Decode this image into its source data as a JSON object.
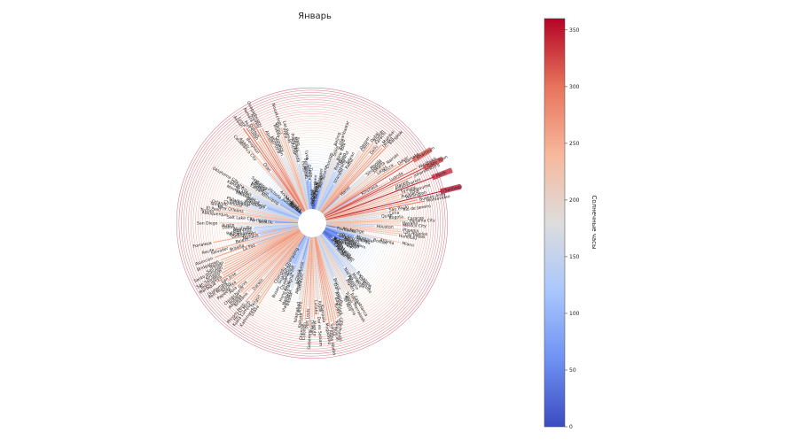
{
  "chart_data": {
    "type": "radial-bar",
    "title": "Январь",
    "colorbar": {
      "label": "Солнечные часы",
      "min": 0,
      "max": 360,
      "ticks": [
        0,
        50,
        100,
        150,
        200,
        250,
        300,
        350
      ],
      "colormap": "coolwarm",
      "colors": [
        "#3b4cc0",
        "#6f92f3",
        "#aac7fd",
        "#dddddd",
        "#f7b89c",
        "#e7745b",
        "#b40426"
      ]
    },
    "categories": [
      "Yakutsk",
      "Oslo",
      "Dikson",
      "Aberdeen",
      "Reykjavik",
      "Moscow",
      "Berlin",
      "Vancouver",
      "London",
      "Paris",
      "Toronto",
      "Chicago",
      "Beijing",
      "Seoul",
      "Ulaanbaatar",
      "Tokyo",
      "New York",
      "Rome",
      "Lisbon",
      "Madrid",
      "Athens",
      "Istanbul",
      "Tehran",
      "Kabul",
      "Denver",
      "Cairo",
      "Dubai",
      "Riyadh",
      "Karachi",
      "Delhi",
      "Mumbai",
      "Dhaka",
      "Bangkok",
      "Hanoi",
      "Manila",
      "Singapore",
      "Jakarta",
      "Nairobi",
      "Lagos",
      "Accra",
      "Dakar",
      "Bamako",
      "Khartoum",
      "Kinshasa",
      "Luanda",
      "Windhoek",
      "Cape Town",
      "Johannesburg",
      "Harare",
      "Antananarivo",
      "Perth",
      "Sydney",
      "Melbourne",
      "Auckland",
      "Wellington",
      "Santiago",
      "Buenos Aires",
      "Montevideo",
      "Sao Paulo",
      "Rio de Janeiro",
      "Lima",
      "Quito",
      "Bogota",
      "Caracas",
      "Panama City",
      "Havana",
      "Mexico City",
      "Houston",
      "Phoenix",
      "Los Angeles",
      "Las Vegas",
      "Honolulu",
      "Anchorage",
      "Fairbanks",
      "Miami",
      "Atlanta",
      "Boston",
      "Montreal",
      "Quebec",
      "Halifax",
      "Dublin",
      "Edinburgh",
      "Glasgow",
      "Amsterdam",
      "Brussels",
      "Zurich",
      "Vienna",
      "Prague",
      "Warsaw",
      "Kyiv",
      "Minsk",
      "Riga",
      "Tallinn",
      "Helsinki",
      "Stockholm",
      "Copenhagen",
      "Hamburg",
      "Munich",
      "Milan",
      "Barcelona",
      "Valencia",
      "Seville",
      "Marseille",
      "Nice",
      "Naples",
      "Palermo",
      "Tunis",
      "Algiers",
      "Casablanca",
      "Rabat",
      "Marrakesh",
      "Tripoli",
      "Alexandria",
      "Tel Aviv",
      "Beirut",
      "Damascus",
      "Amman",
      "Baghdad",
      "Kuwait City",
      "Doha",
      "Abu Dhabi",
      "Muscat",
      "Sanaa",
      "Addis Ababa",
      "Mogadishu",
      "Kampala",
      "Kigali",
      "Dar es Salaam",
      "Lusaka",
      "Maputo",
      "Durban",
      "Gaborone",
      "Port Louis",
      "Colombo",
      "Chennai",
      "Kolkata",
      "Lahore",
      "Islamabad",
      "Tashkent",
      "Almaty",
      "Novosibirsk",
      "Omsk",
      "Irkutsk",
      "Vladivostok",
      "Harbin",
      "Shanghai",
      "Hong Kong",
      "Taipei",
      "Osaka",
      "Sapporo",
      "Busan",
      "Guangzhou",
      "Chongqing",
      "Chengdu",
      "Lhasa",
      "Kathmandu",
      "Yangon",
      "Kuala Lumpur",
      "Ho Chi Minh",
      "Phnom Penh",
      "Darwin",
      "Brisbane",
      "Adelaide",
      "Hobart",
      "Christchurch",
      "Suva",
      "Apia",
      "Papeete",
      "Noumea",
      "Port Moresby",
      "Guatemala",
      "San Jose",
      "Managua",
      "Tegucigalpa",
      "San Salvador",
      "Kingston",
      "Santo Domingo",
      "San Juan",
      "Nassau",
      "Bridgetown",
      "La Paz",
      "Asuncion",
      "Brasilia",
      "Salvador",
      "Recife",
      "Belem",
      "Manaus",
      "Fortaleza",
      "Georgetown",
      "Paramaribo",
      "Raleigh",
      "Memphis",
      "Nashville",
      "Dallas",
      "Austin",
      "San Diego",
      "Seattle",
      "Portland",
      "Salt Lake City",
      "Albuquerque",
      "Tucson",
      "El Paso",
      "New Orleans",
      "Tampa",
      "Orlando",
      "Charlotte",
      "Baltimore",
      "Philadelphia",
      "Pittsburgh",
      "Cleveland",
      "Detroit",
      "Milwaukee",
      "Minneapolis",
      "St. Louis",
      "Kansas City",
      "Omaha",
      "Oklahoma City",
      "Winnipeg",
      "Calgary",
      "Edmonton",
      "Ottawa",
      "Regina",
      "Saskatoon",
      "Victoria",
      "Juneau",
      "Nuuk",
      "Tromso",
      "Murmansk",
      "Arkhangelsk",
      "Norilsk",
      "Casablanca City",
      "Agadir",
      "Oran",
      "Benghazi",
      "Aswan",
      "Luxor",
      "Port Sudan",
      "Djibouti",
      "Asmara",
      "Niamey",
      "Ouagadougou",
      "Abidjan",
      "Monrovia",
      "Freetown",
      "Conakry",
      "Bissau",
      "Banjul",
      "Nouakchott",
      "Praia",
      "Las Palmas",
      "Funchal",
      "Ponta Delgada",
      "Malaga",
      "Faro",
      "Porto",
      "Bilbao",
      "Bordeaux",
      "Lyon",
      "Geneva",
      "Turin"
    ],
    "values": [
      9,
      22,
      3,
      38,
      18,
      26,
      45,
      54,
      59,
      62,
      85,
      121,
      193,
      161,
      200,
      185,
      154,
      125,
      143,
      149,
      122,
      89,
      156,
      144,
      216,
      213,
      251,
      258,
      254,
      222,
      270,
      262,
      282,
      72,
      190,
      168,
      191,
      237,
      195,
      215,
      262,
      282,
      319,
      123,
      216,
      309,
      335,
      286,
      223,
      218,
      347,
      232,
      257,
      228,
      240,
      358,
      279,
      299,
      184,
      225,
      184,
      159,
      181,
      236,
      242,
      220,
      222,
      144,
      222,
      225,
      230,
      213,
      44,
      28,
      226,
      160,
      141,
      91,
      88,
      93,
      48,
      42,
      38,
      57,
      59,
      71,
      62,
      54,
      44,
      32,
      30,
      34,
      30,
      28,
      40,
      43,
      51,
      74,
      58,
      150,
      164,
      184,
      145,
      166,
      118,
      143,
      148,
      149,
      203,
      192,
      221,
      182,
      189,
      192,
      130,
      144,
      169,
      184,
      201,
      250,
      252,
      268,
      257,
      275,
      252,
      197,
      185,
      231,
      182,
      243,
      240,
      269,
      207,
      248,
      253,
      222,
      188,
      190,
      105,
      125,
      70,
      95,
      167,
      160,
      170,
      114,
      138,
      90,
      132,
      92,
      165,
      88,
      38,
      108,
      246,
      255,
      217,
      253,
      250,
      265,
      174,
      236,
      253,
      254,
      231,
      213,
      247,
      263,
      238,
      252,
      262,
      223,
      290,
      265,
      265,
      256,
      250,
      245,
      240,
      252,
      134,
      265,
      165,
      213,
      254,
      148,
      116,
      257,
      121,
      131,
      164,
      134,
      131,
      183,
      183,
      233,
      69,
      88,
      123,
      204,
      246,
      227,
      159,
      222,
      209,
      166,
      148,
      143,
      102,
      99,
      119,
      133,
      156,
      151,
      163,
      180,
      201,
      68,
      121,
      107,
      125,
      120,
      115,
      71,
      24,
      11,
      0,
      0,
      11,
      0,
      203,
      244,
      151,
      214,
      306,
      301,
      249,
      252,
      303,
      277,
      276,
      214,
      182,
      172,
      181,
      227,
      232,
      257,
      216,
      200,
      164,
      138,
      170,
      186,
      107,
      85,
      89,
      141,
      81,
      88
    ]
  }
}
